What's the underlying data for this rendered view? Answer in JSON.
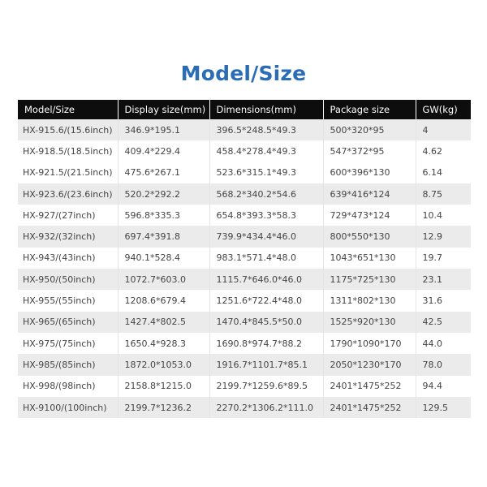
{
  "title": "Model/Size",
  "columns": [
    "Model/Size",
    "Display size(mm)",
    "Dimensions(mm)",
    "Package size",
    "GW(kg)"
  ],
  "rows": [
    [
      "HX-915.6/(15.6inch)",
      "346.9*195.1",
      "396.5*248.5*49.3",
      "500*320*95",
      "4"
    ],
    [
      "HX-918.5/(18.5inch)",
      "409.4*229.4",
      "458.4*278.4*49.3",
      "547*372*95",
      "4.62"
    ],
    [
      "HX-921.5/(21.5inch)",
      "475.6*267.1",
      "523.6*315.1*49.3",
      "600*396*130",
      "6.14"
    ],
    [
      "HX-923.6/(23.6inch)",
      "520.2*292.2",
      "568.2*340.2*54.6",
      "639*416*124",
      "8.75"
    ],
    [
      "HX-927/(27inch)",
      "596.8*335.3",
      "654.8*393.3*58.3",
      "729*473*124",
      "10.4"
    ],
    [
      "HX-932/(32inch)",
      "697.4*391.8",
      "739.9*434.4*46.0",
      "800*550*130",
      "12.9"
    ],
    [
      "HX-943/(43inch)",
      "940.1*528.4",
      "983.1*571.4*48.0",
      "1043*651*130",
      "19.7"
    ],
    [
      "HX-950/(50inch)",
      "1072.7*603.0",
      "1115.7*646.0*46.0",
      "1175*725*130",
      "23.1"
    ],
    [
      "HX-955/(55inch)",
      "1208.6*679.4",
      "1251.6*722.4*48.0",
      "1311*802*130",
      "31.6"
    ],
    [
      "HX-965/(65inch)",
      "1427.4*802.5",
      "1470.4*845.5*50.0",
      "1525*920*130",
      "42.5"
    ],
    [
      "HX-975/(75inch)",
      "1650.4*928.3",
      "1690.8*974.7*88.2",
      "1790*1090*170",
      "44.0"
    ],
    [
      "HX-985/(85inch)",
      "1872.0*1053.0",
      "1916.7*1101.7*85.1",
      "2050*1230*170",
      "78.0"
    ],
    [
      "HX-998/(98inch)",
      "2158.8*1215.0",
      "2199.7*1259.6*89.5",
      "2401*1475*252",
      "94.4"
    ],
    [
      "HX-9100/(100inch)",
      "2199.7*1236.2",
      "2270.2*1306.2*111.0",
      "2401*1475*252",
      "129.5"
    ]
  ],
  "colors": {
    "title": "#2a6cb6",
    "header_bg": "#0d0d0d",
    "stripe": "#ebebeb"
  }
}
